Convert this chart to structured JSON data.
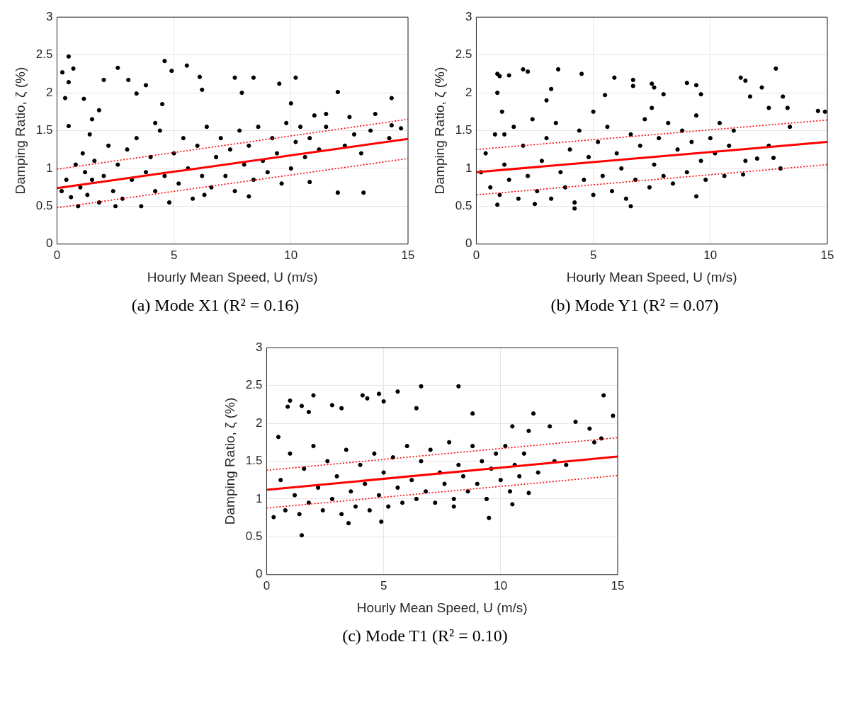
{
  "chart_data": [
    {
      "type": "scatter",
      "title": "(a) Mode X1 (R² = 0.16)",
      "xlabel": "Hourly Mean Speed, U (m/s)",
      "ylabel": "Damping Ratio, ζ (%)",
      "xlim": [
        0,
        15
      ],
      "ylim": [
        0,
        3
      ],
      "xticks": [
        0,
        5,
        10,
        15
      ],
      "yticks": [
        0,
        0.5,
        1,
        1.5,
        2,
        2.5,
        3
      ],
      "grid": true,
      "legend": false,
      "series": [
        {
          "type": "scatter",
          "color": "#000000",
          "marker": "circle",
          "x": [
            0.5,
            0.23,
            0.5,
            0.7,
            0.35,
            1.15,
            2,
            2.6,
            3.05,
            3.8,
            4.6,
            4.9,
            5.55,
            6.1,
            7.6,
            8.4,
            10.2,
            9.5,
            12,
            14.3,
            7.9,
            6.2,
            10,
            3.4,
            4.5,
            1.8,
            13.6,
            11.5,
            12.5,
            0.5,
            14.7,
            14.3,
            12,
            13.1,
            8.2,
            10.8,
            0.2,
            0.4,
            0.6,
            0.8,
            0.9,
            1,
            1.1,
            1.2,
            1.3,
            1.4,
            1.5,
            1.6,
            1.8,
            2,
            2.2,
            2.4,
            2.6,
            2.8,
            3,
            3.2,
            3.4,
            3.6,
            3.8,
            4,
            4.2,
            4.4,
            4.6,
            4.8,
            5,
            5.2,
            5.4,
            5.6,
            5.8,
            6,
            6.2,
            6.4,
            6.6,
            6.8,
            7,
            7.2,
            7.4,
            7.6,
            7.8,
            8,
            8.2,
            8.4,
            8.6,
            8.8,
            9,
            9.2,
            9.4,
            9.6,
            9.8,
            10,
            10.2,
            10.4,
            10.6,
            10.8,
            11,
            11.2,
            11.5,
            12.3,
            12.7,
            13,
            13.4,
            14.2,
            2.5,
            6.3,
            1.5,
            4.2
          ],
          "values": [
            2.48,
            2.27,
            2.14,
            2.32,
            1.93,
            1.92,
            2.17,
            2.33,
            2.17,
            2.1,
            2.42,
            2.29,
            2.36,
            2.21,
            2.2,
            2.2,
            2.2,
            2.12,
            2.01,
            1.93,
            2,
            2.04,
            1.86,
            1.99,
            1.85,
            1.77,
            1.72,
            1.72,
            1.68,
            1.56,
            1.53,
            1.57,
            0.68,
            0.68,
            0.63,
            0.82,
            0.7,
            0.85,
            0.62,
            1.05,
            0.5,
            0.75,
            1.2,
            0.95,
            0.65,
            1.45,
            0.85,
            1.1,
            0.55,
            0.9,
            1.3,
            0.7,
            1.05,
            0.6,
            1.25,
            0.85,
            1.4,
            0.5,
            0.95,
            1.15,
            0.7,
            1.5,
            0.9,
            0.55,
            1.2,
            0.8,
            1.4,
            1,
            0.6,
            1.3,
            0.9,
            1.55,
            0.75,
            1.15,
            1.4,
            0.9,
            1.25,
            0.7,
            1.5,
            1.05,
            1.3,
            0.85,
            1.55,
            1.1,
            0.95,
            1.4,
            1.2,
            0.8,
            1.6,
            1,
            1.35,
            1.55,
            1.15,
            1.4,
            1.7,
            1.25,
            1.55,
            1.3,
            1.45,
            1.2,
            1.5,
            1.4,
            0.5,
            0.65,
            1.65,
            1.6
          ]
        },
        {
          "type": "line",
          "color": "#ff0000",
          "line_style": "solid",
          "x": [
            0,
            15
          ],
          "values": [
            0.74,
            1.39
          ]
        },
        {
          "type": "line",
          "color": "#ff0000",
          "line_style": "dotted",
          "x": [
            0,
            15
          ],
          "values": [
            0.99,
            1.65
          ]
        },
        {
          "type": "line",
          "color": "#ff0000",
          "line_style": "dotted",
          "x": [
            0,
            15
          ],
          "values": [
            0.48,
            1.13
          ]
        }
      ]
    },
    {
      "type": "scatter",
      "title": "(b) Mode Y1 (R² = 0.07)",
      "xlabel": "Hourly Mean Speed, U (m/s)",
      "ylabel": "Damping Ratio, ζ (%)",
      "xlim": [
        0,
        15
      ],
      "ylim": [
        0,
        3
      ],
      "xticks": [
        0,
        5,
        10,
        15
      ],
      "yticks": [
        0,
        0.5,
        1,
        1.5,
        2,
        2.5,
        3
      ],
      "grid": true,
      "legend": false,
      "series": [
        {
          "type": "scatter",
          "color": "#000000",
          "marker": "circle",
          "x": [
            0.9,
            1,
            1.4,
            2,
            2.2,
            3.5,
            4.5,
            5.9,
            6.7,
            6.7,
            7.5,
            7.6,
            9,
            9.4,
            11.3,
            11.5,
            12.2,
            12.8,
            13.1,
            14.6,
            14.9,
            12.5,
            13.3,
            11.7,
            0.9,
            3.2,
            5.5,
            8,
            9.6,
            12,
            12.7,
            13,
            11.4,
            9.4,
            0.9,
            4.2,
            6.6,
            2.5,
            0.2,
            0.4,
            0.6,
            0.8,
            1,
            1.1,
            1.2,
            1.4,
            1.6,
            1.8,
            2,
            2.2,
            2.4,
            2.6,
            2.8,
            3,
            3.2,
            3.4,
            3.6,
            3.8,
            4,
            4.2,
            4.4,
            4.6,
            4.8,
            5,
            5.2,
            5.4,
            5.6,
            5.8,
            6,
            6.2,
            6.4,
            6.6,
            6.8,
            7,
            7.2,
            7.4,
            7.6,
            7.8,
            8,
            8.2,
            8.4,
            8.6,
            8.8,
            9,
            9.2,
            9.4,
            9.6,
            9.8,
            10,
            10.2,
            10.4,
            10.6,
            10.8,
            11,
            11.5,
            12.5,
            13.4,
            1.2,
            3,
            5,
            7.5
          ],
          "values": [
            2.25,
            2.22,
            2.23,
            2.31,
            2.28,
            2.31,
            2.25,
            2.2,
            2.17,
            2.09,
            2.12,
            2.07,
            2.13,
            2.1,
            2.2,
            2.16,
            2.07,
            2.32,
            1.95,
            1.76,
            1.75,
            1.8,
            1.8,
            1.95,
            2,
            2.05,
            1.97,
            1.98,
            1.98,
            1.13,
            1.14,
            1,
            0.92,
            0.63,
            0.52,
            0.47,
            0.5,
            0.53,
            0.95,
            1.2,
            0.75,
            1.45,
            0.65,
            1.75,
            1.05,
            0.85,
            1.55,
            0.6,
            1.3,
            0.9,
            1.65,
            0.7,
            1.1,
            1.4,
            0.6,
            1.6,
            0.95,
            0.75,
            1.25,
            0.55,
            1.5,
            0.85,
            1.15,
            0.65,
            1.35,
            0.9,
            1.55,
            0.7,
            1.2,
            1,
            0.6,
            1.45,
            0.85,
            1.3,
            1.65,
            0.75,
            1.05,
            1.4,
            0.9,
            1.6,
            0.8,
            1.25,
            1.5,
            0.95,
            1.35,
            1.7,
            1.1,
            0.85,
            1.4,
            1.2,
            1.6,
            0.9,
            1.3,
            1.5,
            1.1,
            1.3,
            1.55,
            1.45,
            1.9,
            1.75,
            1.8
          ]
        },
        {
          "type": "line",
          "color": "#ff0000",
          "line_style": "solid",
          "x": [
            0,
            15
          ],
          "values": [
            0.95,
            1.35
          ]
        },
        {
          "type": "line",
          "color": "#ff0000",
          "line_style": "dotted",
          "x": [
            0,
            15
          ],
          "values": [
            1.25,
            1.64
          ]
        },
        {
          "type": "line",
          "color": "#ff0000",
          "line_style": "dotted",
          "x": [
            0,
            15
          ],
          "values": [
            0.65,
            1.05
          ]
        }
      ]
    },
    {
      "type": "scatter",
      "title": "(c) Mode T1 (R² = 0.10)",
      "xlabel": "Hourly Mean Speed, U (m/s)",
      "ylabel": "Damping Ratio, ζ (%)",
      "xlim": [
        0,
        15
      ],
      "ylim": [
        0,
        3
      ],
      "xticks": [
        0,
        5,
        10,
        15
      ],
      "yticks": [
        0,
        0.5,
        1,
        1.5,
        2,
        2.5,
        3
      ],
      "grid": true,
      "legend": false,
      "series": [
        {
          "type": "scatter",
          "color": "#000000",
          "marker": "circle",
          "x": [
            1,
            0.9,
            1.5,
            2,
            1.8,
            2.8,
            3.2,
            4.1,
            4.3,
            4.8,
            5,
            5.6,
            6.6,
            8.2,
            6.4,
            8.8,
            11.4,
            14.4,
            14.8,
            13.2,
            13.8,
            12.1,
            10.5,
            11.2,
            0.5,
            0.3,
            1.5,
            3.5,
            4.9,
            9.5,
            10.5,
            8,
            11.2,
            14.3,
            14,
            0.6,
            0.8,
            1,
            1.2,
            1.4,
            1.6,
            1.8,
            2,
            2.2,
            2.4,
            2.6,
            2.8,
            3,
            3.2,
            3.4,
            3.6,
            3.8,
            4,
            4.2,
            4.4,
            4.6,
            4.8,
            5,
            5.2,
            5.4,
            5.6,
            5.8,
            6,
            6.2,
            6.4,
            6.6,
            6.8,
            7,
            7.2,
            7.4,
            7.6,
            7.8,
            8,
            8.2,
            8.4,
            8.6,
            8.8,
            9,
            9.2,
            9.4,
            9.6,
            9.8,
            10,
            10.2,
            10.4,
            10.6,
            10.8,
            11,
            11.6,
            12.3,
            12.8
          ],
          "values": [
            2.3,
            2.22,
            2.23,
            2.37,
            2.15,
            2.24,
            2.2,
            2.37,
            2.33,
            2.39,
            2.29,
            2.42,
            2.49,
            2.49,
            2.2,
            2.13,
            2.13,
            2.37,
            2.1,
            2.02,
            1.93,
            1.96,
            1.96,
            1.9,
            1.82,
            0.76,
            0.52,
            0.68,
            0.7,
            0.75,
            0.93,
            0.9,
            1.08,
            1.8,
            1.75,
            1.25,
            0.85,
            1.6,
            1.05,
            0.8,
            1.4,
            0.95,
            1.7,
            1.15,
            0.85,
            1.5,
            1.0,
            1.3,
            0.8,
            1.65,
            1.1,
            0.9,
            1.45,
            1.2,
            0.85,
            1.6,
            1.05,
            1.35,
            0.9,
            1.55,
            1.15,
            0.95,
            1.7,
            1.25,
            1.0,
            1.5,
            1.1,
            1.65,
            0.95,
            1.35,
            1.2,
            1.75,
            1.0,
            1.45,
            1.3,
            1.1,
            1.7,
            1.2,
            1.5,
            1.0,
            1.4,
            1.6,
            1.25,
            1.7,
            1.1,
            1.45,
            1.3,
            1.6,
            1.35,
            1.5,
            1.45
          ]
        },
        {
          "type": "line",
          "color": "#ff0000",
          "line_style": "solid",
          "x": [
            0,
            15
          ],
          "values": [
            1.12,
            1.56
          ]
        },
        {
          "type": "line",
          "color": "#ff0000",
          "line_style": "dotted",
          "x": [
            0,
            15
          ],
          "values": [
            1.38,
            1.81
          ]
        },
        {
          "type": "line",
          "color": "#ff0000",
          "line_style": "dotted",
          "x": [
            0,
            15
          ],
          "values": [
            0.88,
            1.31
          ]
        }
      ]
    }
  ]
}
